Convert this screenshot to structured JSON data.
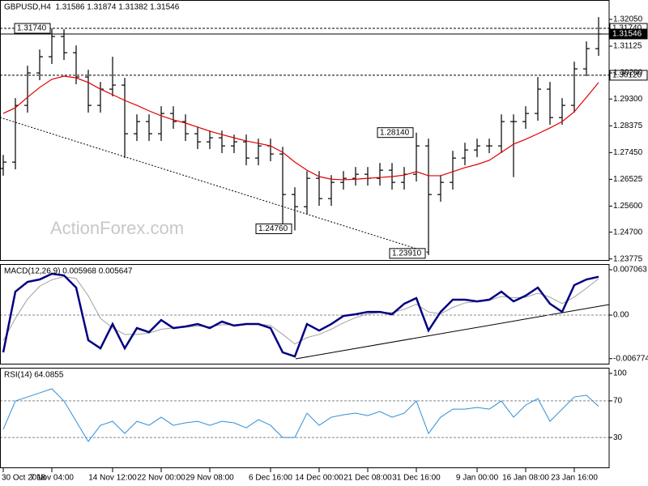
{
  "chart_data": [
    {
      "type": "ohlc",
      "title": "GBPUSD,H4  1.31586 1.31874 1.31382 1.31546",
      "watermark": "ActionForex.com",
      "categories": [
        "30 Oct 2018",
        null,
        null,
        null,
        "7 Nov 04:00",
        null,
        null,
        null,
        null,
        "14 Nov 12:00",
        null,
        null,
        null,
        "22 Nov 00:00",
        null,
        null,
        null,
        "29 Nov 08:00",
        null,
        null,
        null,
        null,
        "6 Dec 16:00",
        null,
        null,
        null,
        "14 Dec 00:00",
        null,
        null,
        null,
        "21 Dec 08:00",
        null,
        null,
        null,
        "31 Dec 16:00",
        null,
        null,
        null,
        null,
        "9 Jan 00:00",
        null,
        null,
        null,
        "16 Jan 08:00",
        null,
        null,
        null,
        "23 Jan 16:00",
        null,
        null
      ],
      "open": [
        1.269,
        1.2712,
        1.2908,
        1.302,
        1.3076,
        1.3146,
        1.309,
        1.3006,
        1.2908,
        1.2964,
        1.2978,
        1.281,
        1.2852,
        1.281,
        1.288,
        1.2852,
        1.281,
        1.2782,
        1.2796,
        1.2768,
        1.2782,
        1.2726,
        1.2768,
        1.274,
        1.26,
        1.2558,
        1.2656,
        1.2586,
        1.2642,
        1.2656,
        1.267,
        1.2656,
        1.2684,
        1.2642,
        1.267,
        1.2768,
        1.26,
        1.2642,
        1.2726,
        1.2754,
        1.2768,
        1.2768,
        1.2852,
        1.2852,
        1.288,
        1.2964,
        1.2866,
        1.2908,
        1.3034,
        1.3104
      ],
      "high": [
        1.2737,
        1.2933,
        1.3045,
        1.3101,
        1.3174,
        1.3171,
        1.3115,
        1.3031,
        1.2989,
        1.3076,
        1.3003,
        1.2877,
        1.2877,
        1.2905,
        1.2905,
        1.2877,
        1.2835,
        1.2821,
        1.2821,
        1.2807,
        1.2807,
        1.2793,
        1.2793,
        1.2765,
        1.2625,
        1.2681,
        1.2681,
        1.2667,
        1.2681,
        1.2695,
        1.2695,
        1.2709,
        1.2709,
        1.2695,
        1.2814,
        1.2793,
        1.2667,
        1.2751,
        1.2779,
        1.2793,
        1.2793,
        1.2877,
        1.2877,
        1.2905,
        1.3006,
        1.2989,
        1.2933,
        1.3059,
        1.3129,
        1.3213
      ],
      "low": [
        1.2665,
        1.2687,
        1.2883,
        1.2995,
        1.3051,
        1.3065,
        1.2981,
        1.2883,
        1.2883,
        1.2939,
        1.2726,
        1.2785,
        1.2785,
        1.2785,
        1.2827,
        1.2785,
        1.2757,
        1.2757,
        1.2743,
        1.2743,
        1.2701,
        1.2701,
        1.2715,
        1.25,
        1.2476,
        1.2533,
        1.2561,
        1.2561,
        1.2617,
        1.2631,
        1.2631,
        1.2631,
        1.2617,
        1.2617,
        1.2645,
        1.2391,
        1.2575,
        1.2617,
        1.2701,
        1.2729,
        1.2743,
        1.2743,
        1.266,
        1.2827,
        1.2855,
        1.2841,
        1.2841,
        1.2883,
        1.3009,
        1.3079
      ],
      "close": [
        1.2712,
        1.2908,
        1.302,
        1.3076,
        1.3146,
        1.309,
        1.3006,
        1.2908,
        1.2964,
        1.2978,
        1.281,
        1.2852,
        1.281,
        1.288,
        1.2852,
        1.281,
        1.2782,
        1.2796,
        1.2768,
        1.2782,
        1.2726,
        1.2768,
        1.274,
        1.26,
        1.2558,
        1.2656,
        1.2586,
        1.2642,
        1.2656,
        1.267,
        1.2656,
        1.2684,
        1.2642,
        1.267,
        1.2768,
        1.26,
        1.2642,
        1.2726,
        1.2754,
        1.2768,
        1.2768,
        1.2852,
        1.2852,
        1.288,
        1.2964,
        1.2866,
        1.2908,
        1.3034,
        1.3104,
        1.31546
      ],
      "color": "#000000",
      "moving_average": {
        "color": "#e00000",
        "values": [
          1.288,
          1.29,
          1.2936,
          1.297,
          1.2998,
          1.3009,
          1.3003,
          1.2987,
          1.2964,
          1.2945,
          1.2925,
          1.2908,
          1.2889,
          1.2872,
          1.2858,
          1.2847,
          1.2833,
          1.2819,
          1.2807,
          1.2796,
          1.2785,
          1.2777,
          1.2768,
          1.2746,
          1.2712,
          1.2684,
          1.2662,
          1.2653,
          1.2651,
          1.2653,
          1.2656,
          1.2659,
          1.2662,
          1.2667,
          1.2679,
          1.2665,
          1.2665,
          1.2679,
          1.2693,
          1.2704,
          1.2718,
          1.2746,
          1.2774,
          1.2791,
          1.281,
          1.283,
          1.2852,
          1.2886,
          1.2936,
          1.2987
        ]
      },
      "levels": [
        {
          "value": 1.3174,
          "label": "1.31740",
          "line": "dashed",
          "left_label": true
        },
        {
          "value": 1.31546,
          "label": "1.31546",
          "line": "solid",
          "current": true
        },
        {
          "value": 1.3012,
          "label": "1.30120",
          "line": "dashed"
        }
      ],
      "extreme_labels": [
        {
          "value": 1.2814,
          "label": "1.28140"
        },
        {
          "value": 1.2476,
          "label": "1.24760"
        },
        {
          "value": 1.2391,
          "label": "1.23910"
        }
      ],
      "ylim": [
        1.2371,
        1.3272
      ],
      "yticks": [
        {
          "value": 1.3205,
          "label": "1.32050"
        },
        1.31125,
        {
          "value": 1.302,
          "label": "1.30200"
        },
        {
          "value": 1.293,
          "label": "1.29300"
        },
        1.28375,
        {
          "value": 1.2745,
          "label": "1.27450"
        },
        1.26525,
        {
          "value": 1.256,
          "label": "1.25600"
        },
        {
          "value": 1.247,
          "label": "1.24700"
        },
        1.23775
      ]
    },
    {
      "type": "macd",
      "title": "MACD(12,26,9) 0.005968 0.005647",
      "macd": {
        "color": "#000080",
        "values": [
          -0.0058,
          0.00366,
          0.00517,
          0.00555,
          0.00643,
          0.00618,
          0.00429,
          -0.00391,
          -0.00517,
          -0.00139,
          -0.00517,
          -0.00202,
          -0.00265,
          -0.00076,
          -0.00202,
          -0.00177,
          -0.00139,
          -0.00202,
          -0.00101,
          -0.00164,
          -0.00139,
          -0.00139,
          -0.00202,
          -0.0058,
          -0.00643,
          -0.00139,
          -0.0024,
          -0.00139,
          -0.00013,
          0.00013,
          0.0005,
          0.0005,
          0.00013,
          0.00177,
          0.00265,
          -0.0024,
          0.0005,
          0.0024,
          0.0024,
          0.00214,
          0.0024,
          0.00366,
          0.00214,
          0.00303,
          0.00429,
          0.00177,
          0.0005,
          0.00467,
          0.00555,
          0.005968
        ]
      },
      "signal": {
        "color": "#a0a0a0",
        "values": [
          -0.004,
          -0.0005,
          0.0025,
          0.0045,
          0.0055,
          0.006,
          0.0057,
          0.003,
          -0.0005,
          -0.002,
          -0.003,
          -0.003,
          -0.0028,
          -0.0022,
          -0.002,
          -0.0019,
          -0.0017,
          -0.0018,
          -0.0015,
          -0.0015,
          -0.0014,
          -0.0014,
          -0.0016,
          -0.003,
          -0.0045,
          -0.0035,
          -0.003,
          -0.0022,
          -0.0012,
          -0.0004,
          0.0002,
          0.0004,
          0.0004,
          0.0009,
          0.0017,
          0.0005,
          0.0002,
          0.0012,
          0.0019,
          0.0021,
          0.0023,
          0.0029,
          0.0027,
          0.0028,
          0.0034,
          0.0028,
          0.0018,
          0.0028,
          0.0042,
          0.005647
        ]
      },
      "levels": [
        0
      ],
      "ylim": [
        -0.00769,
        0.00795
      ],
      "yticks": [
        0.007063,
        {
          "value": 0,
          "label": "0.00"
        },
        -0.006774
      ]
    },
    {
      "type": "line",
      "title": "RSI(14) 64.0855",
      "color": "#2f8fd8",
      "values": [
        38.9,
        69.9,
        74.3,
        78.7,
        83.2,
        69.9,
        47.7,
        25.6,
        43.3,
        47.7,
        34.4,
        47.7,
        43.3,
        52.2,
        43.3,
        46,
        47.7,
        43.3,
        47.7,
        46,
        40.6,
        49.5,
        43.3,
        30,
        30,
        56.6,
        43.3,
        52.2,
        54.8,
        56.6,
        53.9,
        58.4,
        52.2,
        56.6,
        69.9,
        34.4,
        52.2,
        61,
        61,
        62.8,
        61,
        69.9,
        52.2,
        65.4,
        72.5,
        47.7,
        61,
        74.3,
        76.1,
        64.0855
      ],
      "levels": [
        70,
        30
      ],
      "ylim": [
        -3.5,
        106.2
      ],
      "yticks": [
        100,
        70,
        30
      ]
    }
  ]
}
